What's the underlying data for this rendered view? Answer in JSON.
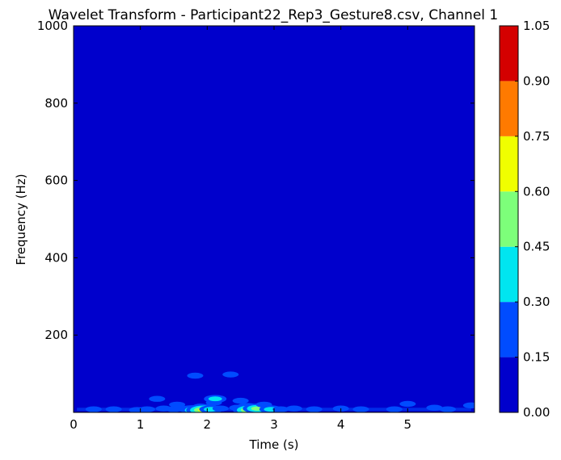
{
  "chart_data": {
    "type": "heatmap",
    "title": "Wavelet Transform - Participant22_Rep3_Gesture8.csv, Channel 1",
    "xlabel": "Time (s)",
    "ylabel": "Frequency (Hz)",
    "xlim": [
      0,
      6
    ],
    "ylim": [
      0,
      1000
    ],
    "x_ticks": [
      0,
      1,
      2,
      3,
      4,
      5
    ],
    "x_tick_labels": [
      "0",
      "1",
      "2",
      "3",
      "4",
      "5"
    ],
    "y_ticks": [
      200,
      400,
      600,
      800,
      1000
    ],
    "y_tick_labels": [
      "200",
      "400",
      "600",
      "800",
      "1000"
    ],
    "colormap": "jet",
    "colorbar": {
      "levels": [
        0.0,
        0.15,
        0.3,
        0.45,
        0.6,
        0.75,
        0.9,
        1.05
      ],
      "labels": [
        "0.00",
        "0.15",
        "0.30",
        "0.45",
        "0.60",
        "0.75",
        "0.90",
        "1.05"
      ],
      "colors": [
        "#0000cc",
        "#004cff",
        "#00e5f0",
        "#7dff7a",
        "#f0ff00",
        "#ff7a00",
        "#d40000"
      ]
    },
    "background_value_range": [
      0.0,
      0.15
    ],
    "hotspots": [
      {
        "t": 0.3,
        "f": 8,
        "level": 1
      },
      {
        "t": 0.6,
        "f": 8,
        "level": 1
      },
      {
        "t": 0.95,
        "f": 6,
        "level": 1
      },
      {
        "t": 1.1,
        "f": 8,
        "level": 1
      },
      {
        "t": 1.25,
        "f": 35,
        "level": 1
      },
      {
        "t": 1.35,
        "f": 10,
        "level": 1
      },
      {
        "t": 1.5,
        "f": 8,
        "level": 1
      },
      {
        "t": 1.55,
        "f": 20,
        "level": 1
      },
      {
        "t": 1.6,
        "f": 10,
        "level": 1
      },
      {
        "t": 1.75,
        "f": 8,
        "level": 2
      },
      {
        "t": 1.82,
        "f": 6,
        "level": 3
      },
      {
        "t": 1.82,
        "f": 95,
        "level": 1
      },
      {
        "t": 1.9,
        "f": 15,
        "level": 1
      },
      {
        "t": 1.95,
        "f": 6,
        "level": 4
      },
      {
        "t": 2.05,
        "f": 8,
        "level": 2
      },
      {
        "t": 2.1,
        "f": 25,
        "level": 1
      },
      {
        "t": 2.12,
        "f": 35,
        "level": 2
      },
      {
        "t": 2.2,
        "f": 10,
        "level": 1
      },
      {
        "t": 2.35,
        "f": 98,
        "level": 1
      },
      {
        "t": 2.45,
        "f": 12,
        "level": 1
      },
      {
        "t": 2.5,
        "f": 30,
        "level": 1
      },
      {
        "t": 2.6,
        "f": 14,
        "level": 2
      },
      {
        "t": 2.65,
        "f": 6,
        "level": 4
      },
      {
        "t": 2.75,
        "f": 10,
        "level": 3
      },
      {
        "t": 2.85,
        "f": 20,
        "level": 1
      },
      {
        "t": 2.95,
        "f": 8,
        "level": 2
      },
      {
        "t": 3.1,
        "f": 8,
        "level": 1
      },
      {
        "t": 3.3,
        "f": 10,
        "level": 1
      },
      {
        "t": 3.6,
        "f": 8,
        "level": 1
      },
      {
        "t": 4.0,
        "f": 10,
        "level": 1
      },
      {
        "t": 4.3,
        "f": 8,
        "level": 1
      },
      {
        "t": 4.8,
        "f": 8,
        "level": 1
      },
      {
        "t": 5.0,
        "f": 22,
        "level": 1
      },
      {
        "t": 5.4,
        "f": 12,
        "level": 1
      },
      {
        "t": 5.6,
        "f": 8,
        "level": 1
      },
      {
        "t": 5.95,
        "f": 18,
        "level": 1
      }
    ]
  }
}
